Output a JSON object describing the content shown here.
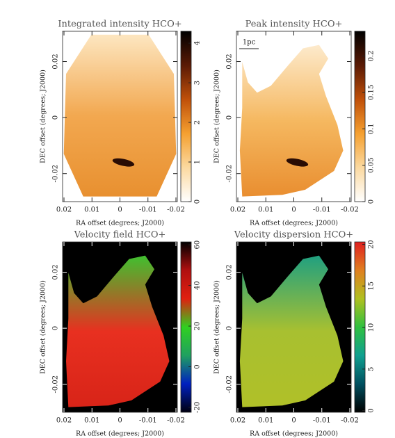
{
  "chart_data": [
    {
      "type": "image",
      "title": "Integrated intensity HCO+",
      "xlabel": "RA offset (degrees; J2000)",
      "ylabel": "DEC offset (degrees; J2000)",
      "xlim": [
        0.0205,
        -0.0205
      ],
      "xticks": [
        0.02,
        0.01,
        0,
        -0.01,
        -0.02
      ],
      "ylim": [
        -0.03,
        0.0308
      ],
      "yticks": [
        0.02,
        0,
        -0.02
      ],
      "clim": [
        0,
        4.3
      ],
      "cticks": [
        0,
        1,
        2,
        3,
        4
      ],
      "colormap": [
        "#ffffff",
        "#fbd9a0",
        "#f5a030",
        "#c0500a",
        "#5a1a05",
        "#000000"
      ]
    },
    {
      "type": "image",
      "title": "Peak intensity HCO+",
      "xlabel": "RA offset (degrees; J2000)",
      "ylabel": "DEC offset (degrees; J2000)",
      "annotation": "1pc",
      "xlim": [
        0.0205,
        -0.0205
      ],
      "xticks": [
        0.02,
        0.01,
        0,
        -0.01,
        -0.02
      ],
      "ylim": [
        -0.03,
        0.0308
      ],
      "yticks": [
        0.02,
        0,
        -0.02
      ],
      "clim": [
        0,
        0.234
      ],
      "cticks": [
        0,
        0.05,
        0.1,
        0.15,
        0.2
      ],
      "colormap": [
        "#ffffff",
        "#fbd9a0",
        "#f5a030",
        "#c0500a",
        "#5a1a05",
        "#000000"
      ]
    },
    {
      "type": "image",
      "title": "Velocity field HCO+",
      "xlabel": "RA offset (degrees; J2000)",
      "ylabel": "DEC offset (degrees; J2000)",
      "xlim": [
        0.0205,
        -0.0205
      ],
      "xticks": [
        0.02,
        0.01,
        0,
        -0.01,
        -0.02
      ],
      "ylim": [
        -0.03,
        0.0308
      ],
      "yticks": [
        0.02,
        0,
        -0.02
      ],
      "clim": [
        -22.4,
        61.4
      ],
      "cticks": [
        -20,
        0,
        20,
        40,
        60
      ],
      "colormap": [
        "#000010",
        "#0020c0",
        "#20a060",
        "#30d020",
        "#e02010",
        "#b01010",
        "#000000"
      ]
    },
    {
      "type": "image",
      "title": "Velocity dispersion HCO+",
      "xlabel": "RA offset (degrees; J2000)",
      "ylabel": "DEC offset (degrees; J2000)",
      "xlim": [
        0.0205,
        -0.0205
      ],
      "xticks": [
        0.02,
        0.01,
        0,
        -0.01,
        -0.02
      ],
      "ylim": [
        -0.03,
        0.0308
      ],
      "yticks": [
        0.02,
        0,
        -0.02
      ],
      "clim": [
        -0.2,
        20.3
      ],
      "cticks": [
        0,
        5,
        10,
        15,
        20
      ],
      "colormap": [
        "#000000",
        "#005060",
        "#10a090",
        "#30c040",
        "#b0c020",
        "#e08020",
        "#e02020"
      ]
    }
  ]
}
